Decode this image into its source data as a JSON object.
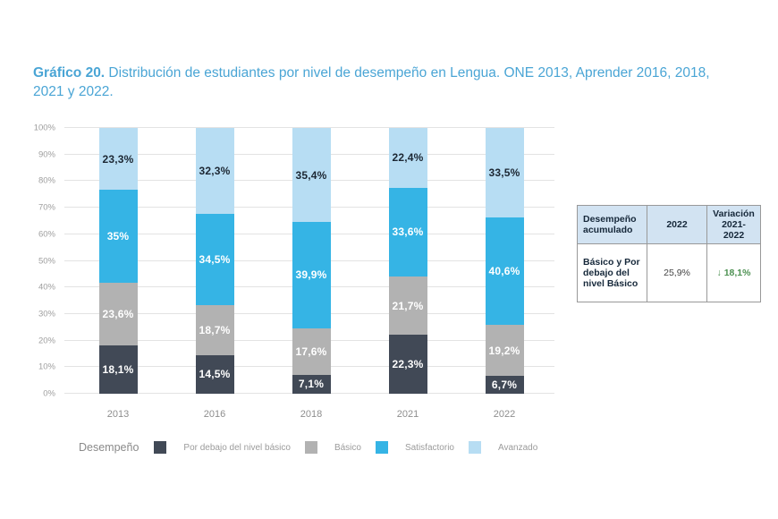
{
  "title": {
    "prefix": "Gráfico 20.",
    "text": " Distribución de estudiantes por nivel de desempeño en Lengua. ONE 2013, Aprender 2016, 2018, 2021 y 2022."
  },
  "chart_data": {
    "type": "bar",
    "stacked": true,
    "orientation": "vertical",
    "categories": [
      "2013",
      "2016",
      "2018",
      "2021",
      "2022"
    ],
    "series": [
      {
        "name": "Por debajo del nivel básico",
        "color": "#414956",
        "label_color": "#ffffff",
        "values": [
          18.1,
          14.5,
          7.1,
          22.3,
          6.7
        ],
        "labels": [
          "18,1%",
          "14,5%",
          "7,1%",
          "22,3%",
          "6,7%"
        ]
      },
      {
        "name": "Básico",
        "color": "#b2b2b2",
        "label_color": "#ffffff",
        "values": [
          23.6,
          18.7,
          17.6,
          21.7,
          19.2
        ],
        "labels": [
          "23,6%",
          "18,7%",
          "17,6%",
          "21,7%",
          "19,2%"
        ]
      },
      {
        "name": "Satisfactorio",
        "color": "#35b4e5",
        "label_color": "#ffffff",
        "values": [
          35,
          34.5,
          39.9,
          33.6,
          40.6
        ],
        "labels": [
          "35%",
          "34,5%",
          "39,9%",
          "33,6%",
          "40,6%"
        ]
      },
      {
        "name": "Avanzado",
        "color": "#b7ddf3",
        "label_color": "#1c2733",
        "values": [
          23.3,
          32.3,
          35.4,
          22.4,
          33.5
        ],
        "labels": [
          "23,3%",
          "32,3%",
          "35,4%",
          "22,4%",
          "33,5%"
        ]
      }
    ],
    "y_ticks": [
      "0%",
      "10%",
      "20%",
      "30%",
      "40%",
      "50%",
      "60%",
      "70%",
      "80%",
      "90%",
      "100%"
    ],
    "ylim": [
      0,
      100
    ],
    "grid": true,
    "legend_title": "Desempeño",
    "legend_position": "bottom"
  },
  "table": {
    "headers": [
      "Desempeño acumulado",
      "2022",
      "Variación 2021-2022"
    ],
    "rows": [
      {
        "label": "Básico y Por debajo del nivel Básico",
        "value_2022": "25,9%",
        "variation_arrow": "↓",
        "variation": "18,1%",
        "variation_color": "#4d9152"
      }
    ]
  }
}
